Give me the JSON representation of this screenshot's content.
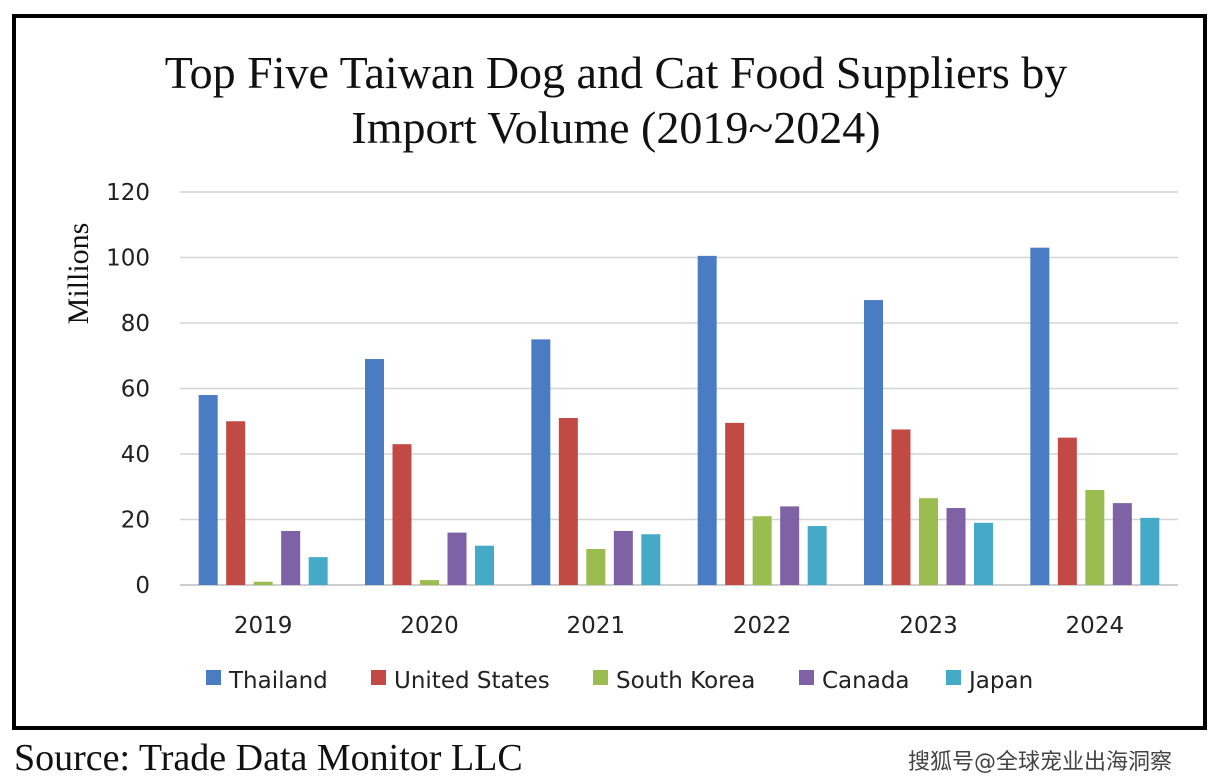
{
  "chart_data": {
    "type": "bar",
    "title_lines": [
      "Top Five Taiwan Dog and Cat Food Suppliers by",
      "Import Volume (2019~2024)"
    ],
    "ylabel": "Millions",
    "xlabel": "",
    "ylim": [
      0,
      120
    ],
    "yticks": [
      "0",
      "20",
      "40",
      "60",
      "80",
      "100",
      "120"
    ],
    "grid": true,
    "legend_position": "bottom",
    "categories": [
      "2019",
      "2020",
      "2021",
      "2022",
      "2023",
      "2024"
    ],
    "series": [
      {
        "name": "Thailand",
        "color": "#4a7cc4",
        "values": [
          58,
          69,
          75,
          100.5,
          87,
          103
        ]
      },
      {
        "name": "United States",
        "color": "#c24a45",
        "values": [
          50,
          43,
          51,
          49.5,
          47.5,
          45
        ]
      },
      {
        "name": "South Korea",
        "color": "#9bbc4f",
        "values": [
          1,
          1.5,
          11,
          21,
          26.5,
          29
        ]
      },
      {
        "name": "Canada",
        "color": "#7f62a6",
        "values": [
          16.5,
          16,
          16.5,
          24,
          23.5,
          25
        ]
      },
      {
        "name": "Japan",
        "color": "#45a9c8",
        "values": [
          8.5,
          12,
          15.5,
          18,
          19,
          20.5
        ]
      }
    ]
  },
  "source": "Source: Trade Data Monitor LLC",
  "watermark": "搜狐号@全球宠业出海洞察"
}
